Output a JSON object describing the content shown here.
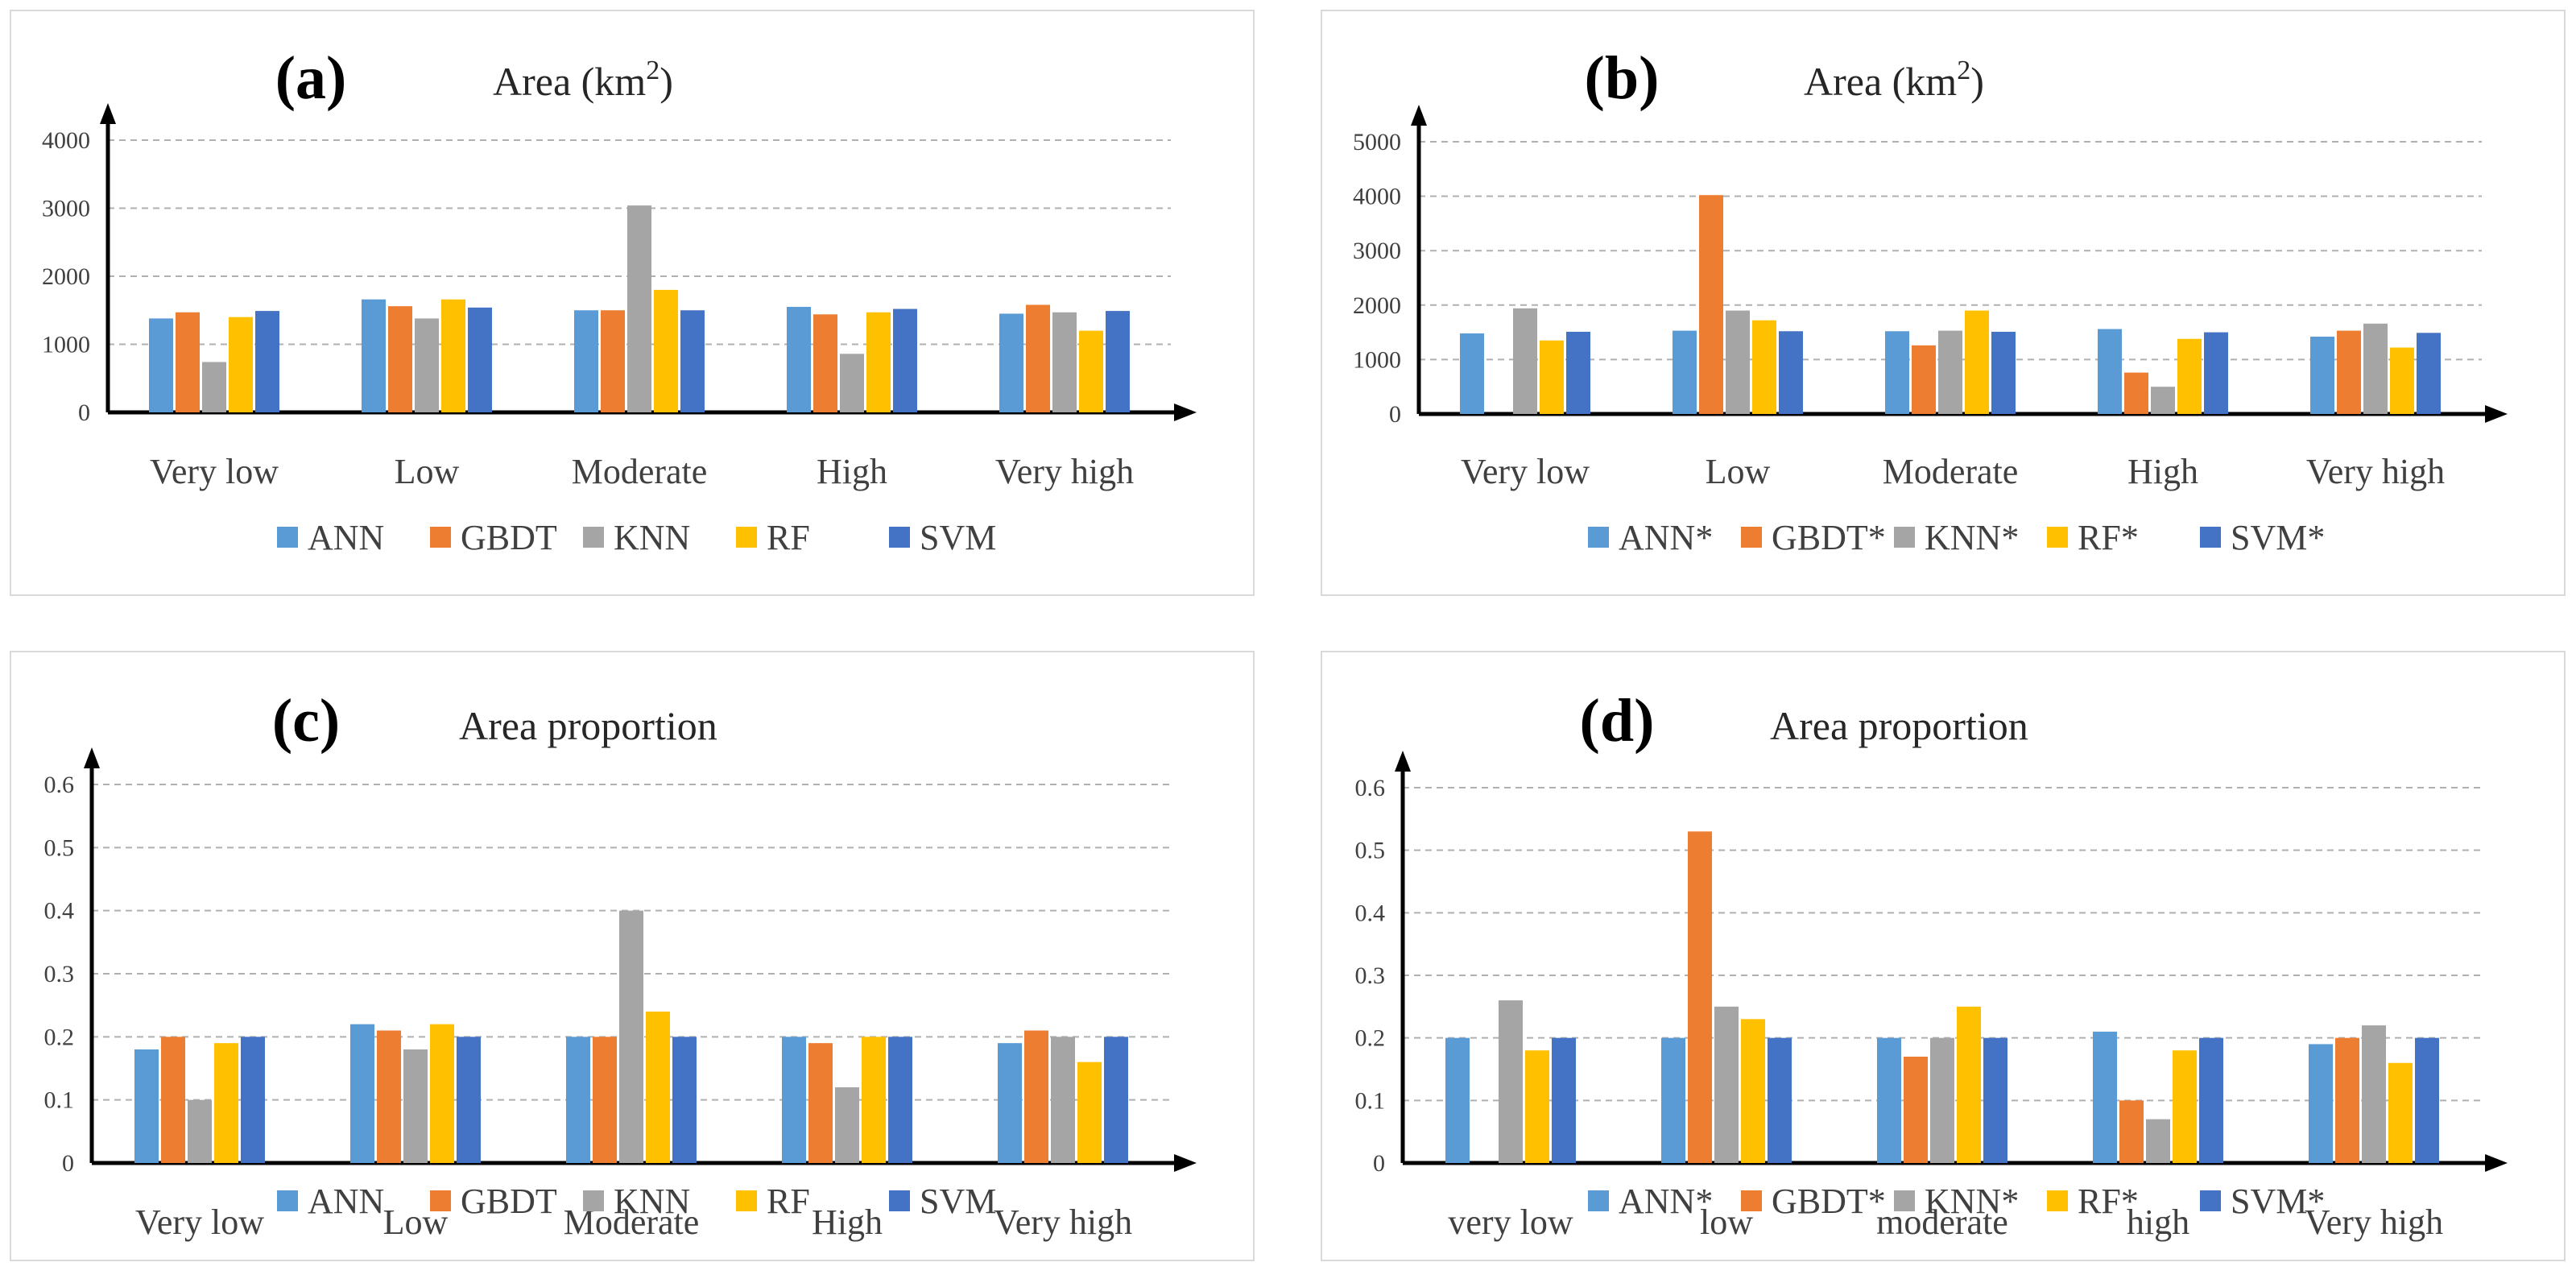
{
  "chart_data": [
    {
      "id": "a",
      "type": "bar",
      "panel_label": "(a)",
      "title": "Area (km",
      "title_sup": "2",
      "title_close": ")",
      "categories": [
        "Very low",
        "Low",
        "Moderate",
        "High",
        "Very high"
      ],
      "ylim": [
        0,
        4000
      ],
      "yticks": [
        0,
        1000,
        2000,
        3000,
        4000
      ],
      "grid": true,
      "legend": "bottom",
      "series": [
        {
          "name": "ANN",
          "color": "#5b9bd5",
          "values": [
            1380,
            1660,
            1500,
            1550,
            1450
          ]
        },
        {
          "name": "GBDT",
          "color": "#ed7d31",
          "values": [
            1470,
            1560,
            1500,
            1440,
            1580
          ]
        },
        {
          "name": "KNN",
          "color": "#a5a5a5",
          "values": [
            740,
            1380,
            3040,
            860,
            1470
          ]
        },
        {
          "name": "RF",
          "color": "#ffc000",
          "values": [
            1400,
            1660,
            1800,
            1470,
            1200
          ]
        },
        {
          "name": "SVM",
          "color": "#4472c4",
          "values": [
            1490,
            1540,
            1500,
            1520,
            1490
          ]
        }
      ]
    },
    {
      "id": "b",
      "type": "bar",
      "panel_label": "(b)",
      "title": "Area (km",
      "title_sup": "2",
      "title_close": ")",
      "categories": [
        "Very low",
        "Low",
        "Moderate",
        "High",
        "Very high"
      ],
      "ylim": [
        0,
        5000
      ],
      "yticks": [
        0,
        1000,
        2000,
        3000,
        4000,
        5000
      ],
      "grid": true,
      "legend": "bottom",
      "series": [
        {
          "name": "ANN*",
          "color": "#5b9bd5",
          "values": [
            1480,
            1530,
            1520,
            1560,
            1420
          ]
        },
        {
          "name": "GBDT*",
          "color": "#ed7d31",
          "values": [
            0,
            4020,
            1260,
            760,
            1530
          ]
        },
        {
          "name": "KNN*",
          "color": "#a5a5a5",
          "values": [
            1940,
            1900,
            1530,
            500,
            1660
          ]
        },
        {
          "name": "RF*",
          "color": "#ffc000",
          "values": [
            1350,
            1720,
            1900,
            1380,
            1220
          ]
        },
        {
          "name": "SVM*",
          "color": "#4472c4",
          "values": [
            1510,
            1520,
            1510,
            1500,
            1490
          ]
        }
      ]
    },
    {
      "id": "c",
      "type": "bar",
      "panel_label": "(c)",
      "title": "Area proportion",
      "categories": [
        "Very low",
        "Low",
        "Moderate",
        "High",
        "Very high"
      ],
      "ylim": [
        0,
        0.6
      ],
      "yticks": [
        "0",
        "0.1",
        "0.2",
        "0.3",
        "0.4",
        "0.5",
        "0.6"
      ],
      "grid": true,
      "legend": "bottom",
      "series": [
        {
          "name": "ANN",
          "color": "#5b9bd5",
          "values": [
            0.18,
            0.22,
            0.2,
            0.2,
            0.19
          ]
        },
        {
          "name": "GBDT",
          "color": "#ed7d31",
          "values": [
            0.2,
            0.21,
            0.2,
            0.19,
            0.21
          ]
        },
        {
          "name": "KNN",
          "color": "#a5a5a5",
          "values": [
            0.1,
            0.18,
            0.4,
            0.12,
            0.2
          ]
        },
        {
          "name": "RF",
          "color": "#ffc000",
          "values": [
            0.19,
            0.22,
            0.24,
            0.2,
            0.16
          ]
        },
        {
          "name": "SVM",
          "color": "#4472c4",
          "values": [
            0.2,
            0.2,
            0.2,
            0.2,
            0.2
          ]
        }
      ]
    },
    {
      "id": "d",
      "type": "bar",
      "panel_label": "(d)",
      "title": "Area proportion",
      "categories": [
        "very low",
        "low",
        "moderate",
        "high",
        "Very high"
      ],
      "ylim": [
        0,
        0.6
      ],
      "yticks": [
        "0",
        "0.1",
        "0.2",
        "0.3",
        "0.4",
        "0.5",
        "0.6"
      ],
      "grid": true,
      "legend": "bottom",
      "series": [
        {
          "name": "ANN*",
          "color": "#5b9bd5",
          "values": [
            0.2,
            0.2,
            0.2,
            0.21,
            0.19
          ]
        },
        {
          "name": "GBDT*",
          "color": "#ed7d31",
          "values": [
            0,
            0.53,
            0.17,
            0.1,
            0.2
          ]
        },
        {
          "name": "KNN*",
          "color": "#a5a5a5",
          "values": [
            0.26,
            0.25,
            0.2,
            0.07,
            0.22
          ]
        },
        {
          "name": "RF*",
          "color": "#ffc000",
          "values": [
            0.18,
            0.23,
            0.25,
            0.18,
            0.16
          ]
        },
        {
          "name": "SVM*",
          "color": "#4472c4",
          "values": [
            0.2,
            0.2,
            0.2,
            0.2,
            0.2
          ]
        }
      ]
    }
  ]
}
